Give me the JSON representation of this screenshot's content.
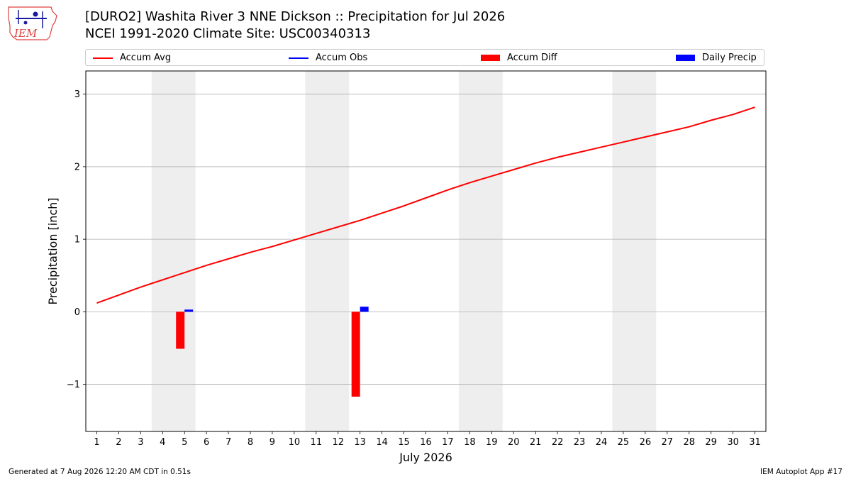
{
  "logo": {
    "text": "IEM",
    "colors": {
      "outline": "#e04040",
      "icon": "#1a1aa0"
    }
  },
  "header": {
    "title_line1": "[DURO2] Washita River 3 NNE Dickson :: Precipitation for Jul 2026",
    "title_line2": "NCEI 1991-2020 Climate Site: USC00340313"
  },
  "legend": {
    "items": [
      {
        "label": "Accum Avg",
        "kind": "line",
        "color": "#ff0000"
      },
      {
        "label": "Accum Obs",
        "kind": "line",
        "color": "#0000ff"
      },
      {
        "label": "Accum Diff",
        "kind": "box",
        "color": "#ff0000"
      },
      {
        "label": "Daily Precip",
        "kind": "box",
        "color": "#0000ff"
      }
    ]
  },
  "chart_data": {
    "type": "line",
    "xlabel": "July 2026",
    "ylabel": "Precipitation [inch]",
    "x": [
      1,
      2,
      3,
      4,
      5,
      6,
      7,
      8,
      9,
      10,
      11,
      12,
      13,
      14,
      15,
      16,
      17,
      18,
      19,
      20,
      21,
      22,
      23,
      24,
      25,
      26,
      27,
      28,
      29,
      30,
      31
    ],
    "xlim": [
      0.5,
      31.5
    ],
    "ylim": [
      -1.65,
      3.32
    ],
    "yticks": [
      -1,
      0,
      1,
      2,
      3
    ],
    "ytick_labels": [
      "−1",
      "0",
      "1",
      "2",
      "3"
    ],
    "grid": "y",
    "weekend_shading": [
      [
        3.5,
        5.5
      ],
      [
        10.5,
        12.5
      ],
      [
        17.5,
        19.5
      ],
      [
        24.5,
        26.5
      ]
    ],
    "weekend_color": "#eeeeee",
    "series": [
      {
        "name": "Accum Avg",
        "type": "line",
        "color": "#ff0000",
        "values": [
          0.12,
          0.23,
          0.34,
          0.44,
          0.54,
          0.64,
          0.73,
          0.82,
          0.9,
          0.99,
          1.08,
          1.17,
          1.26,
          1.36,
          1.46,
          1.57,
          1.68,
          1.78,
          1.87,
          1.96,
          2.05,
          2.13,
          2.2,
          2.27,
          2.34,
          2.41,
          2.48,
          2.55,
          2.64,
          2.72,
          2.82
        ]
      },
      {
        "name": "Accum Diff",
        "type": "bar",
        "color": "#ff0000",
        "bars": [
          {
            "x": 5,
            "value": -0.51
          },
          {
            "x": 13,
            "value": -1.17
          }
        ]
      },
      {
        "name": "Daily Precip",
        "type": "bar",
        "color": "#0000ff",
        "bars": [
          {
            "x": 5,
            "value": 0.03
          },
          {
            "x": 13,
            "value": 0.07
          }
        ]
      }
    ]
  },
  "footer": {
    "left": "Generated at 7 Aug 2026 12:20 AM CDT in 0.51s",
    "right": "IEM Autoplot App #17"
  }
}
